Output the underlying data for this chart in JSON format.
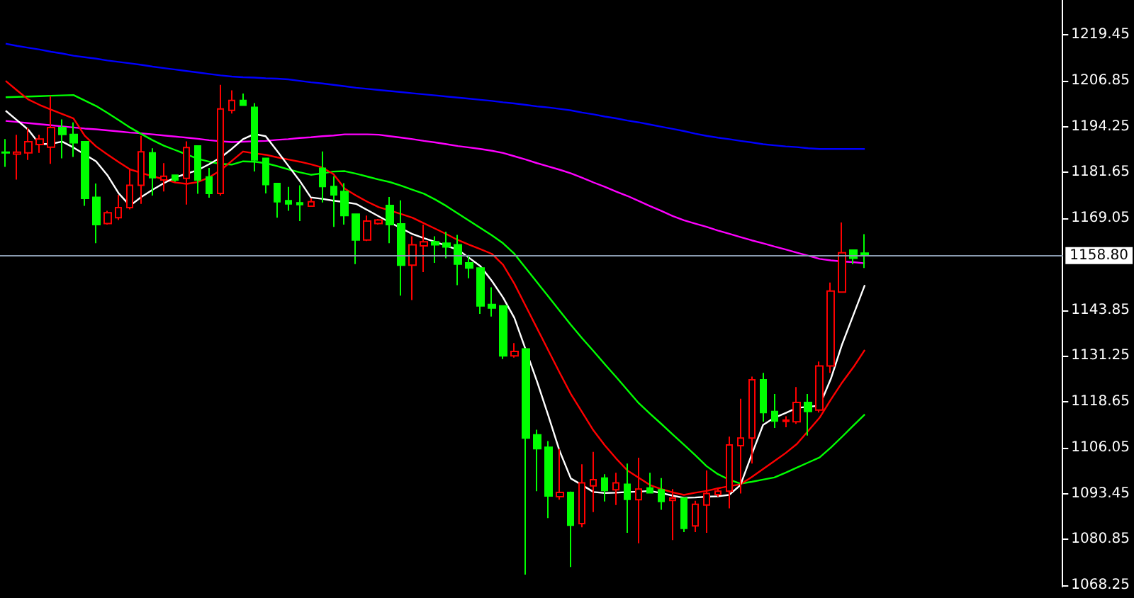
{
  "chart_data": {
    "type": "candlestick",
    "grid": false,
    "marker": "none",
    "categories": [
      null,
      null,
      null,
      null,
      null,
      null,
      null,
      null,
      null,
      null,
      null,
      null,
      null,
      null,
      null,
      null,
      null,
      null,
      null,
      null,
      null,
      null,
      null,
      null,
      null,
      null,
      null,
      null,
      null,
      null,
      null,
      null,
      null,
      null,
      null,
      null,
      null,
      null,
      null,
      null,
      null,
      null,
      null,
      null,
      null,
      null,
      null,
      null,
      null,
      null,
      null,
      null,
      null,
      null,
      null,
      null,
      null,
      null,
      null,
      null,
      null,
      null,
      null,
      null,
      null,
      null,
      null,
      null,
      null,
      null,
      null,
      null,
      null,
      null,
      null,
      null,
      null
    ],
    "ylim": [
      1067.9,
      1229.0
    ],
    "yticks": [
      1068.25,
      1080.85,
      1093.45,
      1106.05,
      1118.65,
      1131.25,
      1143.85,
      1169.05,
      1181.65,
      1194.25,
      1206.85,
      1219.45
    ],
    "ref_lines": [
      {
        "axis": "y",
        "value": 1158.8,
        "label": "1158.80",
        "color": "#8a9bb0"
      }
    ],
    "series": [
      {
        "ohlc": [
          [
            1187.2,
            1190.8,
            1183.2,
            1187.0
          ],
          [
            1186.7,
            1192.0,
            1179.7,
            1187.2
          ],
          [
            1187.0,
            1193.9,
            1185.1,
            1190.1
          ],
          [
            1189.3,
            1192.0,
            1187.0,
            1190.8
          ],
          [
            1188.6,
            1202.7,
            1184.0,
            1194.0
          ],
          [
            1194.0,
            1196.2,
            1185.5,
            1192.1
          ],
          [
            1192.1,
            1195.4,
            1185.9,
            1189.8
          ],
          [
            1190.1,
            1190.3,
            1172.5,
            1174.5
          ],
          [
            1174.8,
            1178.6,
            1162.2,
            1167.3
          ],
          [
            1167.6,
            1171.1,
            1167.3,
            1170.6
          ],
          [
            1169.2,
            1175.5,
            1168.6,
            1172.0
          ],
          [
            1172.0,
            1182.5,
            1171.5,
            1178.1
          ],
          [
            1178.1,
            1191.7,
            1173.0,
            1187.3
          ],
          [
            1187.0,
            1188.3,
            1175.3,
            1180.2
          ],
          [
            1179.6,
            1184.2,
            1176.4,
            1180.6
          ],
          [
            1180.9,
            1181.1,
            1179.1,
            1179.6
          ],
          [
            1180.0,
            1190.2,
            1172.8,
            1188.5
          ],
          [
            1188.9,
            1189.1,
            1175.8,
            1179.6
          ],
          [
            1180.4,
            1182.9,
            1174.7,
            1175.9
          ],
          [
            1175.9,
            1205.7,
            1175.3,
            1199.1
          ],
          [
            1198.7,
            1204.2,
            1197.8,
            1201.4
          ],
          [
            1201.4,
            1203.3,
            1199.9,
            1200.1
          ],
          [
            1199.5,
            1200.7,
            1181.9,
            1185.1
          ],
          [
            1185.5,
            1185.7,
            1175.9,
            1178.3
          ],
          [
            1178.6,
            1178.8,
            1169.2,
            1173.6
          ],
          [
            1173.9,
            1177.7,
            1171.1,
            1173.0
          ],
          [
            1173.3,
            1178.1,
            1168.3,
            1172.8
          ],
          [
            1172.4,
            1174.5,
            1172.2,
            1173.6
          ],
          [
            1182.8,
            1187.4,
            1173.4,
            1177.8
          ],
          [
            1177.8,
            1180.6,
            1166.7,
            1175.5
          ],
          [
            1176.4,
            1178.7,
            1167.3,
            1169.8
          ],
          [
            1170.2,
            1170.4,
            1156.5,
            1163.1
          ],
          [
            1163.1,
            1169.8,
            1162.8,
            1168.3
          ],
          [
            1167.6,
            1168.9,
            1167.3,
            1168.6
          ],
          [
            1172.6,
            1174.9,
            1162.2,
            1167.3
          ],
          [
            1167.5,
            1174.0,
            1147.8,
            1156.2
          ],
          [
            1156.2,
            1164.1,
            1146.6,
            1161.8
          ],
          [
            1161.5,
            1167.3,
            1154.3,
            1162.6
          ],
          [
            1162.6,
            1164.1,
            1156.8,
            1161.8
          ],
          [
            1162.2,
            1165.4,
            1158.1,
            1161.2
          ],
          [
            1161.8,
            1164.5,
            1150.7,
            1156.5
          ],
          [
            1156.8,
            1159.0,
            1152.6,
            1155.4
          ],
          [
            1155.4,
            1155.6,
            1142.8,
            1145.0
          ],
          [
            1145.4,
            1150.1,
            1142.1,
            1144.4
          ],
          [
            1145.0,
            1145.2,
            1130.4,
            1131.3
          ],
          [
            1131.3,
            1134.8,
            1130.8,
            1132.5
          ],
          [
            1133.2,
            1133.4,
            1071.2,
            1108.7
          ],
          [
            1109.6,
            1111.0,
            1094.1,
            1105.8
          ],
          [
            1106.2,
            1107.9,
            1086.7,
            1092.8
          ],
          [
            1092.6,
            1105.8,
            1091.8,
            1093.8
          ],
          [
            1093.8,
            1094.0,
            1073.3,
            1084.8
          ],
          [
            1085.2,
            1101.5,
            1084.2,
            1096.4
          ],
          [
            1095.6,
            1104.9,
            1088.4,
            1097.3
          ],
          [
            1097.7,
            1098.8,
            1091.3,
            1094.3
          ],
          [
            1094.5,
            1099.2,
            1090.3,
            1096.4
          ],
          [
            1096.0,
            1101.7,
            1082.7,
            1091.9
          ],
          [
            1091.8,
            1103.3,
            1079.8,
            1094.7
          ],
          [
            1095.0,
            1099.2,
            1093.5,
            1093.7
          ],
          [
            1094.5,
            1097.7,
            1089.0,
            1091.3
          ],
          [
            1091.6,
            1094.7,
            1080.7,
            1092.2
          ],
          [
            1092.2,
            1092.4,
            1082.9,
            1083.9
          ],
          [
            1084.6,
            1091.5,
            1082.9,
            1090.5
          ],
          [
            1090.3,
            1099.8,
            1082.7,
            1093.5
          ],
          [
            1093.2,
            1095.1,
            1092.6,
            1094.1
          ],
          [
            1094.1,
            1109.1,
            1089.4,
            1106.8
          ],
          [
            1106.6,
            1119.5,
            1093.5,
            1108.7
          ],
          [
            1108.7,
            1125.6,
            1101.7,
            1124.7
          ],
          [
            1124.7,
            1126.6,
            1113.2,
            1115.7
          ],
          [
            1116.0,
            1120.8,
            1111.5,
            1113.4
          ],
          [
            1113.3,
            1114.7,
            1111.7,
            1113.6
          ],
          [
            1113.2,
            1122.7,
            1112.6,
            1118.5
          ],
          [
            1118.5,
            1120.8,
            1109.4,
            1116.0
          ],
          [
            1116.4,
            1129.7,
            1115.7,
            1128.5
          ],
          [
            1128.5,
            1151.4,
            1126.6,
            1149.1
          ],
          [
            1148.8,
            1167.9,
            1148.6,
            1159.6
          ],
          [
            1160.3,
            1160.5,
            1156.5,
            1158.1
          ],
          [
            1159.5,
            1164.7,
            1155.4,
            1158.8
          ]
        ],
        "colors": [
          "#00ff00",
          "#ff0000",
          "#ff0000",
          "#ff0000",
          "#ff0000",
          "#00ff00",
          "#00ff00",
          "#00ff00",
          "#00ff00",
          "#ff0000",
          "#ff0000",
          "#ff0000",
          "#ff0000",
          "#00ff00",
          "#ff0000",
          "#00ff00",
          "#ff0000",
          "#00ff00",
          "#00ff00",
          "#ff0000",
          "#ff0000",
          "#00ff00",
          "#00ff00",
          "#00ff00",
          "#00ff00",
          "#00ff00",
          "#00ff00",
          "#ff0000",
          "#00ff00",
          "#00ff00",
          "#00ff00",
          "#00ff00",
          "#ff0000",
          "#ff0000",
          "#00ff00",
          "#00ff00",
          "#ff0000",
          "#ff0000",
          "#00ff00",
          "#00ff00",
          "#00ff00",
          "#00ff00",
          "#00ff00",
          "#00ff00",
          "#00ff00",
          "#ff0000",
          "#00ff00",
          "#00ff00",
          "#00ff00",
          "#ff0000",
          "#00ff00",
          "#ff0000",
          "#ff0000",
          "#00ff00",
          "#ff0000",
          "#00ff00",
          "#ff0000",
          "#00ff00",
          "#00ff00",
          "#ff0000",
          "#00ff00",
          "#ff0000",
          "#ff0000",
          "#ff0000",
          "#ff0000",
          "#ff0000",
          "#ff0000",
          "#00ff00",
          "#00ff00",
          "#ff0000",
          "#ff0000",
          "#00ff00",
          "#ff0000",
          "#ff0000",
          "#ff0000",
          "#00ff00",
          "#00ff00"
        ]
      },
      {
        "type": "line",
        "color": "#0000ff",
        "values": [
          1217.0,
          1216.4,
          1215.9,
          1215.4,
          1214.8,
          1214.3,
          1213.7,
          1213.3,
          1212.9,
          1212.4,
          1212.0,
          1211.6,
          1211.2,
          1210.7,
          1210.3,
          1209.9,
          1209.5,
          1209.1,
          1208.7,
          1208.3,
          1208.0,
          1207.8,
          1207.7,
          1207.5,
          1207.4,
          1207.2,
          1206.8,
          1206.4,
          1206.1,
          1205.7,
          1205.3,
          1204.9,
          1204.6,
          1204.3,
          1204.0,
          1203.7,
          1203.4,
          1203.1,
          1202.8,
          1202.5,
          1202.2,
          1201.9,
          1201.6,
          1201.3,
          1200.9,
          1200.6,
          1200.2,
          1199.8,
          1199.5,
          1199.1,
          1198.7,
          1198.1,
          1197.6,
          1197.0,
          1196.5,
          1195.9,
          1195.4,
          1194.8,
          1194.2,
          1193.6,
          1193.0,
          1192.3,
          1191.7,
          1191.2,
          1190.8,
          1190.3,
          1189.9,
          1189.4,
          1189.1,
          1188.8,
          1188.6,
          1188.3,
          1188.1,
          1188.1,
          1188.1,
          1188.1,
          1188.1
        ]
      },
      {
        "type": "line",
        "color": "#ff00ff",
        "values": [
          1195.8,
          1195.5,
          1195.2,
          1194.9,
          1194.6,
          1194.3,
          1194.0,
          1193.7,
          1193.5,
          1193.2,
          1192.9,
          1192.6,
          1192.4,
          1192.1,
          1191.8,
          1191.5,
          1191.2,
          1190.9,
          1190.5,
          1190.2,
          1190.0,
          1190.1,
          1190.2,
          1190.3,
          1190.6,
          1190.8,
          1191.1,
          1191.3,
          1191.6,
          1191.8,
          1192.1,
          1192.1,
          1192.1,
          1192.0,
          1191.6,
          1191.2,
          1190.8,
          1190.3,
          1189.9,
          1189.4,
          1188.9,
          1188.5,
          1188.1,
          1187.6,
          1187.0,
          1186.1,
          1185.2,
          1184.2,
          1183.3,
          1182.4,
          1181.4,
          1180.2,
          1178.9,
          1177.7,
          1176.4,
          1175.2,
          1173.8,
          1172.4,
          1171.1,
          1169.7,
          1168.5,
          1167.6,
          1166.7,
          1165.7,
          1164.8,
          1163.9,
          1163.0,
          1162.2,
          1161.3,
          1160.5,
          1159.6,
          1158.8,
          1157.9,
          1157.5,
          1157.2,
          1157.0,
          1156.7
        ]
      },
      {
        "type": "line",
        "color": "#00ff00",
        "values": [
          1202.3,
          1202.4,
          1202.5,
          1202.6,
          1202.7,
          1202.8,
          1202.9,
          1201.4,
          1199.9,
          1198.0,
          1196.0,
          1194.0,
          1192.2,
          1190.5,
          1189.0,
          1187.8,
          1186.6,
          1185.4,
          1184.6,
          1184.0,
          1183.8,
          1184.7,
          1184.6,
          1184.2,
          1183.4,
          1182.5,
          1181.7,
          1181.0,
          1181.4,
          1181.9,
          1182.0,
          1181.3,
          1180.5,
          1179.7,
          1179.0,
          1178.0,
          1176.9,
          1175.8,
          1174.2,
          1172.4,
          1170.4,
          1168.4,
          1166.4,
          1164.4,
          1162.2,
          1159.3,
          1155.4,
          1151.5,
          1147.6,
          1143.7,
          1139.8,
          1136.1,
          1132.6,
          1129.0,
          1125.5,
          1121.9,
          1118.3,
          1115.4,
          1112.6,
          1109.7,
          1106.9,
          1104.0,
          1101.0,
          1098.8,
          1097.3,
          1096.2,
          1096.7,
          1097.3,
          1097.9,
          1099.2,
          1100.6,
          1102.0,
          1103.4,
          1106.1,
          1109.1,
          1112.2,
          1115.2
        ]
      },
      {
        "type": "line",
        "color": "#ff0000",
        "values": [
          1206.8,
          1204.2,
          1201.7,
          1200.2,
          1198.9,
          1197.7,
          1196.5,
          1191.7,
          1188.8,
          1186.6,
          1184.5,
          1182.5,
          1181.5,
          1180.6,
          1179.8,
          1178.9,
          1178.5,
          1179.0,
          1180.3,
          1182.2,
          1184.8,
          1187.4,
          1186.9,
          1186.5,
          1185.8,
          1185.2,
          1184.6,
          1183.9,
          1183.0,
          1181.2,
          1177.2,
          1175.3,
          1173.6,
          1172.1,
          1171.2,
          1170.2,
          1169.2,
          1167.7,
          1166.2,
          1164.7,
          1163.1,
          1161.8,
          1160.6,
          1159.3,
          1156.3,
          1151.1,
          1145.0,
          1138.9,
          1132.8,
          1126.7,
          1120.8,
          1115.8,
          1110.8,
          1106.7,
          1103.1,
          1099.8,
          1097.8,
          1095.8,
          1094.7,
          1093.8,
          1093.1,
          1093.7,
          1094.2,
          1094.9,
          1095.5,
          1096.0,
          1098.0,
          1100.2,
          1102.4,
          1104.6,
          1107.1,
          1110.7,
          1114.3,
          1119.3,
          1124.0,
          1128.2,
          1132.9
        ]
      },
      {
        "type": "line",
        "color": "#ffffff",
        "values": [
          1198.6,
          1196.0,
          1193.4,
          1189.4,
          1189.5,
          1190.1,
          1188.5,
          1186.6,
          1184.7,
          1180.9,
          1175.9,
          1172.5,
          1174.9,
          1176.9,
          1178.7,
          1180.3,
          1181.3,
          1182.3,
          1183.9,
          1185.7,
          1188.1,
          1190.8,
          1192.2,
          1191.6,
          1187.6,
          1183.5,
          1179.4,
          1174.8,
          1174.4,
          1173.9,
          1173.5,
          1173.0,
          1171.3,
          1169.6,
          1167.9,
          1166.3,
          1164.7,
          1163.6,
          1162.6,
          1161.5,
          1160.4,
          1158.2,
          1155.9,
          1151.9,
          1147.3,
          1141.7,
          1133.0,
          1124.3,
          1114.9,
          1105.2,
          1097.6,
          1095.8,
          1093.9,
          1093.6,
          1093.7,
          1093.9,
          1094.0,
          1094.2,
          1093.6,
          1092.9,
          1092.3,
          1092.4,
          1092.6,
          1092.7,
          1093.1,
          1095.8,
          1104.2,
          1112.3,
          1114.3,
          1115.6,
          1117.0,
          1117.3,
          1117.6,
          1125.0,
          1134.5,
          1142.6,
          1150.7
        ]
      }
    ]
  }
}
